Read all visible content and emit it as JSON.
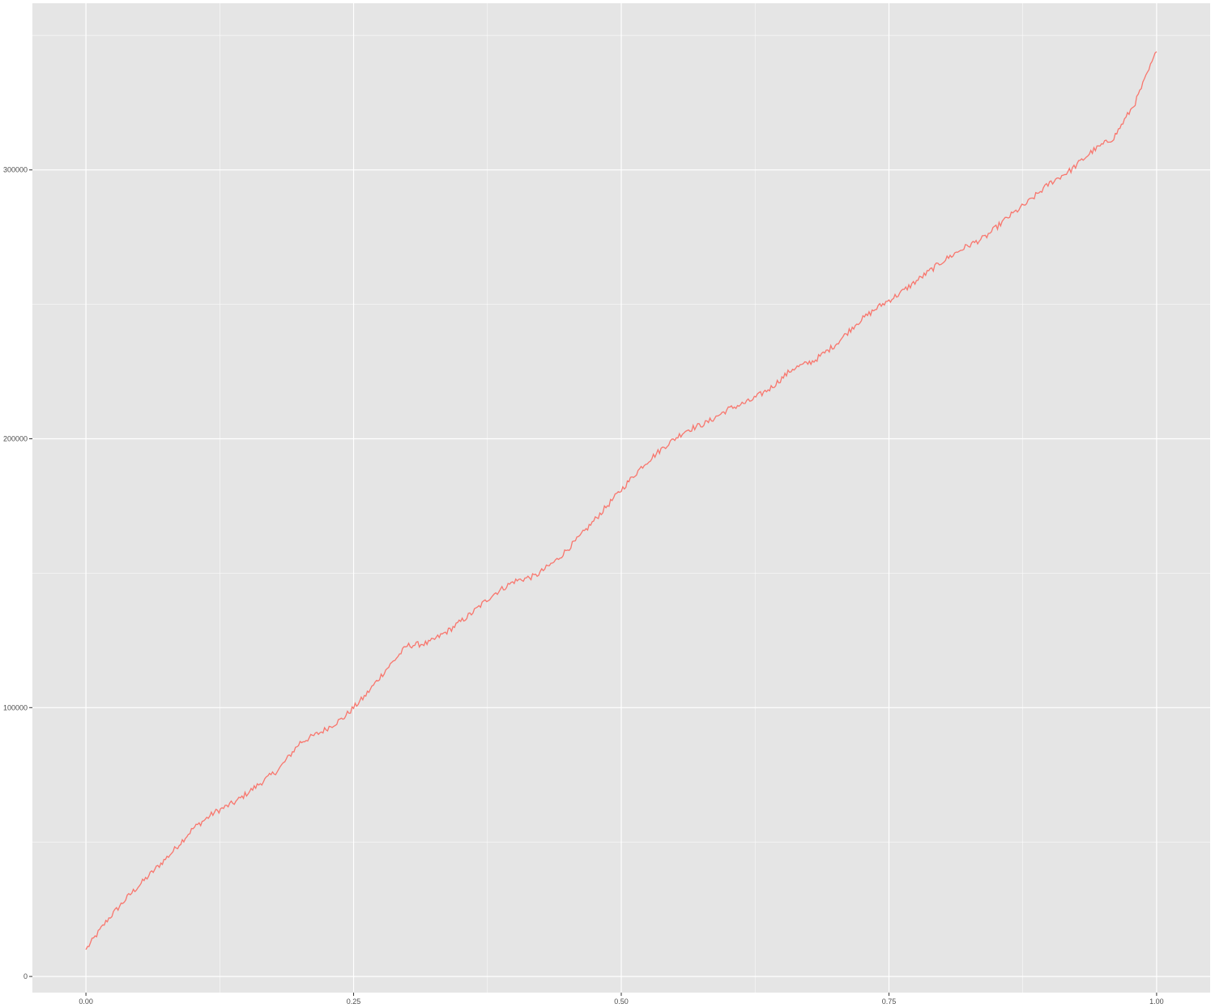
{
  "chart_data": {
    "type": "line",
    "title": "",
    "xlabel": "",
    "ylabel": "",
    "xlim": [
      -0.05,
      1.05
    ],
    "ylim": [
      -6000,
      362000
    ],
    "grid": true,
    "x_ticks": [
      0.0,
      0.25,
      0.5,
      0.75,
      1.0
    ],
    "x_tick_labels": [
      "0.00",
      "0.25",
      "0.50",
      "0.75",
      "1.00"
    ],
    "y_ticks": [
      0,
      100000,
      200000,
      300000
    ],
    "y_tick_labels": [
      "0",
      "100000",
      "200000",
      "300000"
    ],
    "colors": {
      "panel": "#e5e5e5",
      "grid": "#ffffff",
      "line": "#f8766d",
      "tick": "#333333"
    },
    "series": [
      {
        "color": "#f8766d",
        "x": [
          0.0,
          0.02,
          0.04,
          0.06,
          0.08,
          0.1,
          0.12,
          0.14,
          0.16,
          0.18,
          0.2,
          0.22,
          0.24,
          0.26,
          0.28,
          0.3,
          0.32,
          0.34,
          0.36,
          0.38,
          0.4,
          0.42,
          0.44,
          0.46,
          0.48,
          0.5,
          0.52,
          0.54,
          0.56,
          0.58,
          0.6,
          0.62,
          0.64,
          0.66,
          0.68,
          0.7,
          0.72,
          0.74,
          0.76,
          0.78,
          0.8,
          0.82,
          0.84,
          0.86,
          0.88,
          0.9,
          0.92,
          0.94,
          0.96,
          0.98,
          1.0
        ],
        "y": [
          10000,
          21000,
          30000,
          38000,
          46000,
          55000,
          61000,
          65000,
          71000,
          77000,
          87000,
          91000,
          96000,
          104000,
          114000,
          123000,
          124000,
          129000,
          135000,
          142000,
          147000,
          149000,
          155000,
          163000,
          172000,
          181000,
          190000,
          197000,
          203000,
          206000,
          211000,
          214000,
          219000,
          226000,
          229000,
          235000,
          243000,
          249000,
          254000,
          260000,
          266000,
          271000,
          275000,
          282000,
          288000,
          295000,
          300000,
          307000,
          312000,
          325000,
          344000
        ]
      }
    ]
  }
}
